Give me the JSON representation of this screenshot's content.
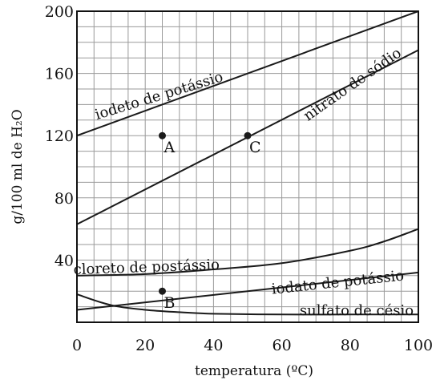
{
  "chart_data": {
    "type": "line",
    "xlabel": "temperatura (ºC)",
    "ylabel": "g/100 ml de H₂O",
    "xlim": [
      0,
      100
    ],
    "ylim": [
      0,
      200
    ],
    "x_ticks": [
      0,
      20,
      40,
      60,
      80,
      100
    ],
    "y_ticks": [
      40,
      80,
      120,
      160,
      200
    ],
    "grid": true,
    "series": [
      {
        "name": "iodeto de potássio",
        "x": [
          0,
          100
        ],
        "y": [
          120,
          200
        ]
      },
      {
        "name": "nitrato de sódio",
        "x": [
          0,
          100
        ],
        "y": [
          63,
          175
        ]
      },
      {
        "name": "cloreto de postássio",
        "x": [
          0,
          20,
          40,
          60,
          80,
          90,
          100
        ],
        "y": [
          30,
          31,
          34,
          38,
          46,
          52,
          60
        ]
      },
      {
        "name": "iodato de potássio",
        "x": [
          0,
          100
        ],
        "y": [
          8,
          32
        ]
      },
      {
        "name": "sulfato de césio",
        "x": [
          0,
          10,
          20,
          30,
          40,
          60,
          80,
          100
        ],
        "y": [
          18,
          11,
          8,
          6.5,
          5.5,
          5,
          5,
          5
        ]
      }
    ],
    "points": [
      {
        "label": "A",
        "x": 25,
        "y": 120
      },
      {
        "label": "B",
        "x": 25,
        "y": 20
      },
      {
        "label": "C",
        "x": 50,
        "y": 120
      }
    ]
  }
}
